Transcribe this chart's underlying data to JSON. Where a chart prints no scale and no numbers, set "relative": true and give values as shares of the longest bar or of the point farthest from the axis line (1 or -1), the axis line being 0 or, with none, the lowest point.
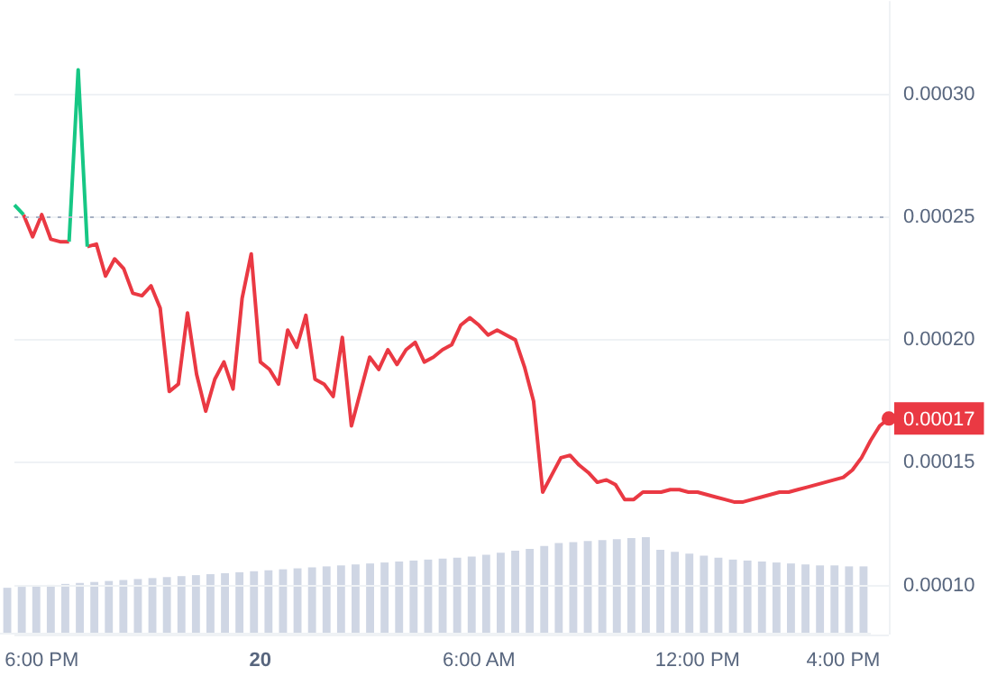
{
  "chart_data": [
    {
      "type": "line",
      "categories": [
        null,
        null,
        null,
        "6:00 PM",
        null,
        null,
        null,
        null,
        null,
        null,
        null,
        null,
        null,
        null,
        null,
        null,
        null,
        null,
        null,
        null,
        null,
        null,
        null,
        null,
        null,
        null,
        null,
        "20",
        null,
        null,
        null,
        null,
        null,
        null,
        null,
        null,
        null,
        null,
        null,
        null,
        null,
        null,
        null,
        null,
        null,
        null,
        null,
        null,
        null,
        null,
        null,
        "6:00 AM",
        null,
        null,
        null,
        null,
        null,
        null,
        null,
        null,
        null,
        null,
        null,
        null,
        null,
        null,
        null,
        null,
        null,
        null,
        null,
        null,
        null,
        null,
        null,
        "12:00 PM",
        null,
        null,
        null,
        null,
        null,
        null,
        null,
        null,
        null,
        null,
        null,
        null,
        null,
        null,
        null,
        "4:00 PM",
        null,
        null,
        null,
        null,
        null
      ],
      "series": [
        {
          "type": "line",
          "color": "#16c784",
          "values": [
            0.000255,
            0.000251,
            null,
            null,
            null,
            null,
            0.00024,
            0.00031,
            0.000238,
            null,
            null,
            null,
            null,
            null,
            null,
            null,
            null,
            null,
            null,
            null,
            null,
            null,
            null,
            null,
            null,
            null,
            null,
            null,
            null,
            null,
            null,
            null,
            null,
            null,
            null,
            null,
            null,
            null,
            null,
            null,
            null,
            null,
            null,
            null,
            null,
            null,
            null,
            null,
            null,
            null,
            null,
            null,
            null,
            null,
            null,
            null,
            null,
            null,
            null,
            null,
            null,
            null,
            null,
            null,
            null,
            null,
            null,
            null,
            null,
            null,
            null,
            null,
            null,
            null,
            null,
            null,
            null,
            null,
            null,
            null,
            null,
            null,
            null,
            null,
            null,
            null,
            null,
            null,
            null,
            null,
            null,
            null,
            null,
            null,
            null,
            null,
            null
          ]
        },
        {
          "type": "line",
          "color": "#ea3943",
          "values": [
            null,
            0.000251,
            0.000242,
            0.000251,
            0.000241,
            0.00024,
            0.00024,
            null,
            0.000238,
            0.000239,
            0.000226,
            0.000233,
            0.000229,
            0.000219,
            0.000218,
            0.000222,
            0.000213,
            0.000179,
            0.000182,
            0.000211,
            0.000186,
            0.000171,
            0.000184,
            0.000191,
            0.00018,
            0.000217,
            0.000235,
            0.000191,
            0.000188,
            0.000182,
            0.000204,
            0.000197,
            0.00021,
            0.000184,
            0.000182,
            0.000177,
            0.000201,
            0.000165,
            0.000179,
            0.000193,
            0.000188,
            0.000196,
            0.00019,
            0.000196,
            0.000199,
            0.000191,
            0.000193,
            0.000196,
            0.000198,
            0.000206,
            0.000209,
            0.000206,
            0.000202,
            0.000204,
            0.000202,
            0.0002,
            0.000189,
            0.000175,
            0.000138,
            0.000145,
            0.000152,
            0.000153,
            0.000149,
            0.000146,
            0.000142,
            0.000143,
            0.000141,
            0.000135,
            0.000135,
            0.000138,
            0.000138,
            0.000138,
            0.000139,
            0.000139,
            0.000138,
            0.000138,
            0.000137,
            0.000136,
            0.000135,
            0.000134,
            0.000134,
            0.000135,
            0.000136,
            0.000137,
            0.000138,
            0.000138,
            0.000139,
            0.00014,
            0.000141,
            0.000142,
            0.000143,
            0.000144,
            0.000147,
            0.000152,
            0.000159,
            0.000165,
            0.000168
          ]
        }
      ],
      "ylim": [
        8e-05,
        0.000338
      ],
      "yticks": [
        {
          "value": 0.0001,
          "label": "0.00010"
        },
        {
          "value": 0.00015,
          "label": "0.00015"
        },
        {
          "value": 0.0002,
          "label": "0.00020"
        },
        {
          "value": 0.00025,
          "label": "0.00025"
        },
        {
          "value": 0.0003,
          "label": "0.00030"
        }
      ],
      "ref_lines": [
        {
          "axis": "y",
          "value": 0.00025,
          "color": "#a6b0c3",
          "line_style": "dotted"
        }
      ],
      "annotations": [
        "0.00017"
      ],
      "grid": "y",
      "legend": false
    },
    {
      "type": "bar",
      "relative": true,
      "color": "#cfd6e4",
      "categories": [
        null,
        null,
        null,
        null,
        null,
        null,
        null,
        null,
        null,
        null,
        null,
        null,
        null,
        null,
        null,
        null,
        null,
        null,
        null,
        null,
        null,
        null,
        null,
        null,
        null,
        null,
        null,
        null,
        null,
        null,
        null,
        null,
        null,
        null,
        null,
        null,
        null,
        null,
        null,
        null,
        null,
        null,
        null,
        null,
        null,
        null,
        null,
        null,
        null,
        null,
        null,
        null,
        null,
        null,
        null,
        null,
        null,
        null,
        null,
        null
      ],
      "values": [
        0.48,
        0.49,
        0.5,
        0.51,
        0.52,
        0.53,
        0.54,
        0.55,
        0.56,
        0.57,
        0.58,
        0.59,
        0.6,
        0.61,
        0.62,
        0.63,
        0.64,
        0.65,
        0.66,
        0.67,
        0.68,
        0.69,
        0.7,
        0.71,
        0.72,
        0.73,
        0.74,
        0.75,
        0.76,
        0.77,
        0.78,
        0.79,
        0.8,
        0.82,
        0.84,
        0.86,
        0.88,
        0.91,
        0.94,
        0.95,
        0.96,
        0.97,
        0.98,
        0.99,
        1.0,
        0.87,
        0.85,
        0.83,
        0.81,
        0.79,
        0.77,
        0.76,
        0.75,
        0.74,
        0.73,
        0.72,
        0.71,
        0.71,
        0.7,
        0.7
      ],
      "legend": false
    }
  ]
}
